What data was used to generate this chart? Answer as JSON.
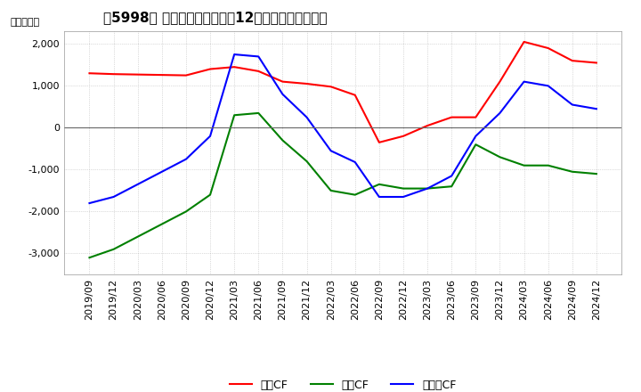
{
  "title": "　3出5998、1》 キャッシュフローの12か月移動合計の推移",
  "title_text": "【5998】 キャッシュフローの12か月移動合計の推移",
  "ylabel": "（百万円）",
  "ylim": [
    -3500,
    2300
  ],
  "yticks": [
    2000,
    1000,
    0,
    -1000,
    -2000,
    -3000
  ],
  "x_labels": [
    "2019/09",
    "2019/12",
    "2020/03",
    "2020/06",
    "2020/09",
    "2020/12",
    "2021/03",
    "2021/06",
    "2021/09",
    "2021/12",
    "2022/03",
    "2022/06",
    "2022/09",
    "2022/12",
    "2023/03",
    "2023/06",
    "2023/09",
    "2023/12",
    "2024/03",
    "2024/06",
    "2024/09",
    "2024/12"
  ],
  "operating_cf": [
    1300,
    1280,
    1270,
    1260,
    1250,
    1400,
    1450,
    1350,
    1100,
    1050,
    980,
    780,
    -350,
    -200,
    50,
    250,
    250,
    1100,
    2050,
    1900,
    1600,
    1550
  ],
  "investing_cf": [
    -3100,
    -2900,
    -2600,
    -2300,
    -2000,
    -1600,
    300,
    350,
    -300,
    -800,
    -1500,
    -1600,
    -1350,
    -1450,
    -1450,
    -1400,
    -400,
    -700,
    -900,
    -900,
    -1050,
    -1100
  ],
  "free_cf": [
    -1800,
    -1650,
    -1350,
    -1050,
    -750,
    -200,
    1750,
    1700,
    800,
    250,
    -550,
    -820,
    -1650,
    -1650,
    -1450,
    -1150,
    -200,
    350,
    1100,
    1000,
    550,
    450
  ],
  "operating_color": "#FF0000",
  "investing_color": "#008000",
  "free_color": "#0000FF",
  "background_color": "#FFFFFF",
  "grid_color": "#AAAAAA",
  "title_fontsize": 11,
  "axis_fontsize": 8,
  "legend_fontsize": 9
}
